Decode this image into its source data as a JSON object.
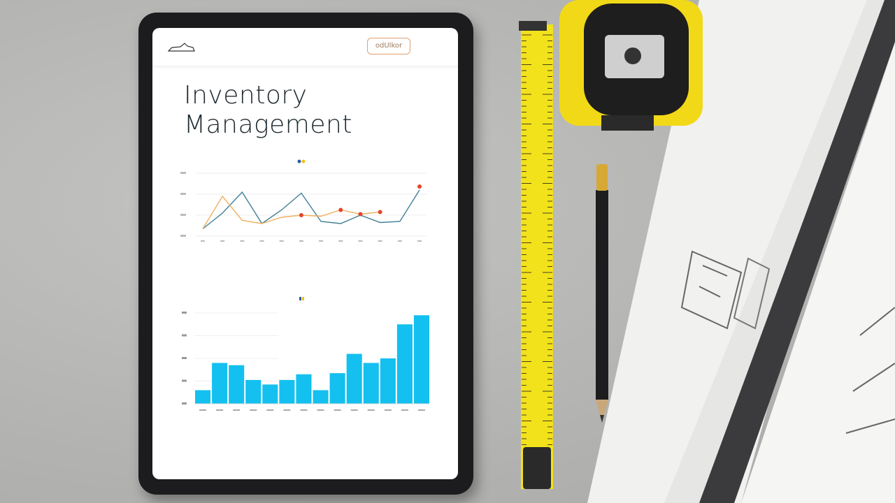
{
  "tablet": {
    "header": {
      "button_label": "odUlkor",
      "logo_icon": "sneaker-logo"
    },
    "title_line1": "Inventory",
    "title_line2": "Management"
  },
  "colors": {
    "accent": "#e0a070",
    "line_blue": "#3f7f95",
    "line_orange": "#f0b060",
    "marker_red": "#e2452b",
    "bar": "#14c0ef",
    "tape_yellow": "#f2e21c"
  },
  "chart_data": [
    {
      "type": "line",
      "ylim": [
        0,
        3
      ],
      "grid": true,
      "legend": "top-center",
      "series": [
        {
          "color": "#3f7f95",
          "values": [
            0.35,
            1.1,
            2.1,
            0.6,
            1.25,
            2.05,
            0.7,
            0.6,
            1.0,
            0.65,
            0.7,
            2.2
          ]
        },
        {
          "color": "#f0b060",
          "values": [
            0.35,
            1.9,
            0.75,
            0.6,
            0.9,
            1.0,
            0.95,
            1.25,
            1.05,
            1.15
          ],
          "markers_at": [
            5,
            7,
            8,
            9
          ]
        }
      ]
    },
    {
      "type": "bar",
      "ylim": [
        0,
        4
      ],
      "grid": true,
      "legend": "top-center",
      "values": [
        0.6,
        1.8,
        1.7,
        1.05,
        0.85,
        1.05,
        1.3,
        0.6,
        1.35,
        2.2,
        1.8,
        2.0,
        3.5,
        3.9
      ]
    }
  ]
}
